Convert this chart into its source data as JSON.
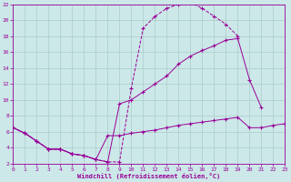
{
  "background_color": "#cce8e8",
  "grid_color": "#aacccc",
  "line_color": "#990099",
  "xlim": [
    0,
    23
  ],
  "ylim": [
    2,
    22
  ],
  "xticks": [
    0,
    1,
    2,
    3,
    4,
    5,
    6,
    7,
    8,
    9,
    10,
    11,
    12,
    13,
    14,
    15,
    16,
    17,
    18,
    19,
    20,
    21,
    22,
    23
  ],
  "yticks": [
    2,
    4,
    6,
    8,
    10,
    12,
    14,
    16,
    18,
    20,
    22
  ],
  "xlabel": "Windchill (Refroidissement éolien,°C)",
  "s1_x": [
    0,
    1,
    2,
    3,
    4,
    5,
    6,
    7,
    8,
    9,
    10,
    11,
    12,
    13,
    14,
    15,
    16,
    17,
    18,
    19,
    20,
    21,
    22,
    23
  ],
  "s1_y": [
    6.5,
    5.8,
    4.8,
    3.8,
    3.8,
    3.2,
    3.0,
    2.5,
    2.2,
    2.2,
    11.5,
    19.0,
    20.5,
    21.5,
    22.0,
    22.2,
    21.5,
    20.5,
    19.5,
    18.0,
    null,
    null,
    null,
    null
  ],
  "s2_x": [
    0,
    1,
    2,
    3,
    4,
    5,
    6,
    7,
    8,
    9,
    10,
    11,
    12,
    13,
    14,
    15,
    16,
    17,
    18,
    19,
    20,
    21,
    22,
    23
  ],
  "s2_y": [
    6.5,
    5.8,
    4.8,
    3.8,
    3.8,
    3.2,
    3.0,
    2.5,
    2.2,
    9.5,
    10.0,
    11.0,
    12.0,
    13.0,
    14.5,
    15.5,
    16.2,
    16.8,
    17.5,
    17.7,
    12.5,
    9.0,
    null,
    null
  ],
  "s3_x": [
    0,
    1,
    2,
    3,
    4,
    5,
    6,
    7,
    8,
    9,
    10,
    11,
    12,
    13,
    14,
    15,
    16,
    17,
    18,
    19,
    20,
    21,
    22,
    23
  ],
  "s3_y": [
    6.5,
    5.8,
    4.8,
    3.8,
    3.8,
    3.2,
    3.0,
    2.5,
    5.5,
    5.5,
    5.8,
    6.0,
    6.2,
    6.5,
    6.8,
    7.0,
    7.2,
    7.4,
    7.6,
    7.8,
    6.5,
    6.5,
    6.8,
    7.0
  ]
}
